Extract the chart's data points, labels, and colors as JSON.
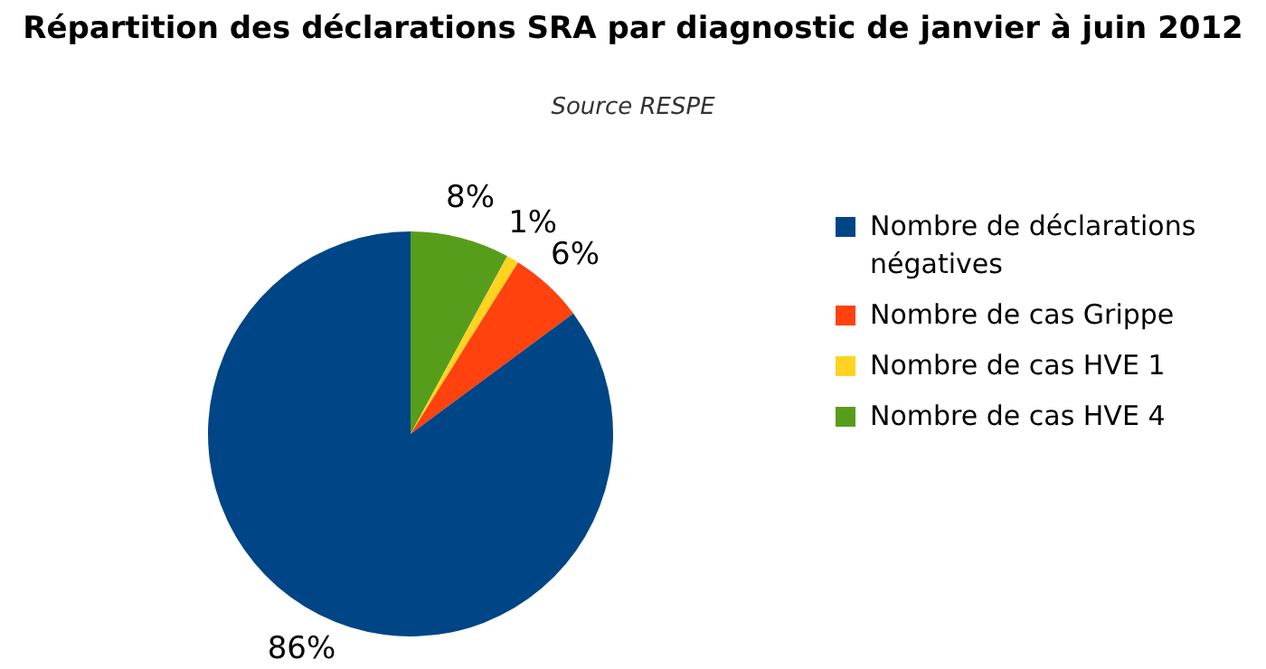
{
  "chart_data": {
    "type": "pie",
    "title": "Répartition des déclarations SRA par diagnostic de janvier à juin 2012",
    "subtitle": "Source RESPE",
    "categories": [
      "Nombre de déclarations négatives",
      "Nombre de cas Grippe",
      "Nombre de cas HVE 1",
      "Nombre de cas HVE 4"
    ],
    "values": [
      86,
      6,
      1,
      8
    ],
    "colors": [
      "#004586",
      "#ff420e",
      "#ffd320",
      "#579d1c"
    ],
    "value_labels": [
      "86%",
      "6%",
      "1%",
      "8%"
    ],
    "legend": "right"
  }
}
